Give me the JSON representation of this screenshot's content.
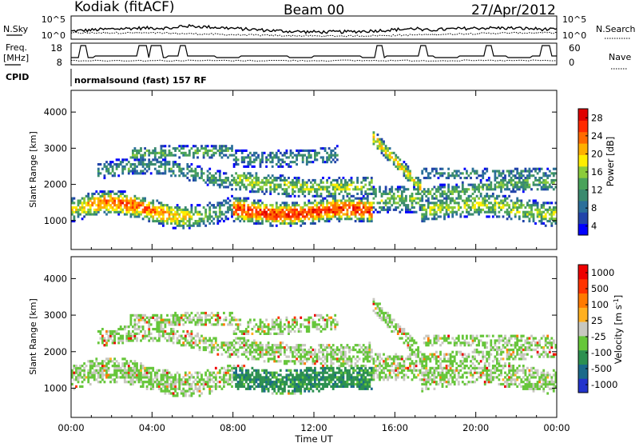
{
  "header": {
    "station": "Kodiak (fitACF)",
    "beam": "Beam 00",
    "date": "27/Apr/2012"
  },
  "noise_panel": {
    "left_label": "N.Sky",
    "right_label": "N.Search",
    "ticks_left": [
      "10^5",
      "10^0"
    ],
    "ticks_right": [
      "10^5",
      "10^0"
    ]
  },
  "freq_panel": {
    "left_label_line1": "Freq.",
    "left_label_line2": "[MHz]",
    "right_label": "Nave",
    "ticks_left": [
      "18",
      "8"
    ],
    "ticks_right": [
      "60",
      "0"
    ]
  },
  "cpid_panel": {
    "label": "CPID",
    "text": "normalsound (fast) 157 RF"
  },
  "chart_data": [
    {
      "type": "heatmap",
      "title": "Power",
      "xlabel": "",
      "ylabel": "Slant Range [km]",
      "x_ticks": [
        "00:00",
        "04:00",
        "08:00",
        "12:00",
        "16:00",
        "20:00",
        "00:00"
      ],
      "y_ticks": [
        1000,
        2000,
        3000,
        4000
      ],
      "ylim": [
        200,
        4600
      ],
      "colorbar": {
        "label": "Power [dB]",
        "ticks": [
          "28",
          "24",
          "20",
          "16",
          "12",
          "8",
          "4"
        ],
        "range": [
          0,
          30
        ],
        "colors": [
          "#0000ff",
          "#2244aa",
          "#2b6f9a",
          "#3a8a6e",
          "#4aa35a",
          "#8bcc3a",
          "#ffee00",
          "#ffb000",
          "#ff6a00",
          "#ff2a00",
          "#e00000"
        ]
      }
    },
    {
      "type": "heatmap",
      "title": "Velocity",
      "xlabel": "Time UT",
      "ylabel": "Slant Range [km]",
      "x_ticks": [
        "00:00",
        "04:00",
        "08:00",
        "12:00",
        "16:00",
        "20:00",
        "00:00"
      ],
      "y_ticks": [
        1000,
        2000,
        3000,
        4000
      ],
      "ylim": [
        200,
        4600
      ],
      "colorbar": {
        "label": "Velocity [m s-1]",
        "label_main": "Velocity  [m s",
        "label_sup": "-1",
        "label_end": "]",
        "ticks": [
          "1000",
          "500",
          "100",
          "25",
          "-25",
          "-100",
          "-500",
          "-1000"
        ],
        "range": [
          -1200,
          1200
        ],
        "colors": [
          "#2233cc",
          "#1a6a8a",
          "#2c9050",
          "#66c63a",
          "#c8c8c0",
          "#ffb020",
          "#ff7a00",
          "#ff3300",
          "#ee0000"
        ]
      }
    }
  ]
}
